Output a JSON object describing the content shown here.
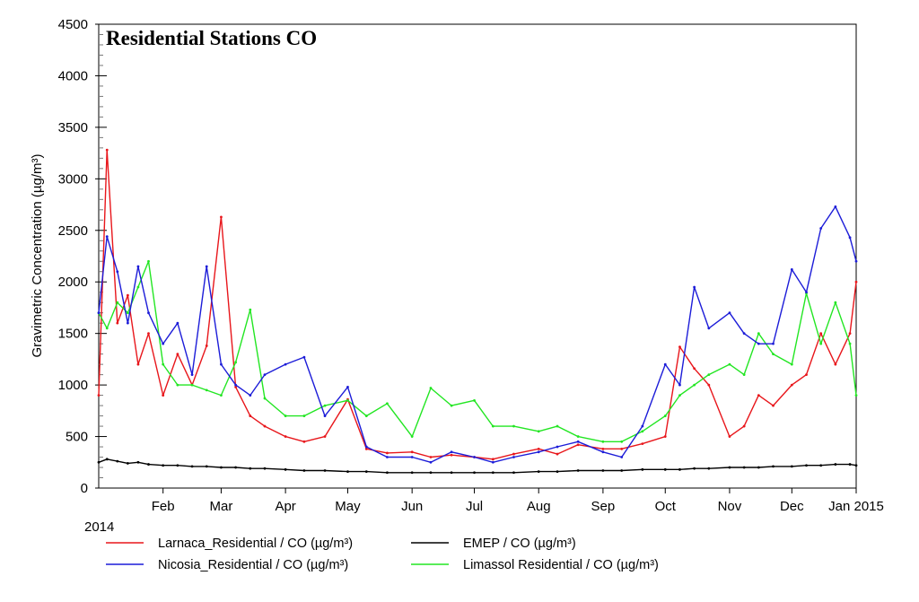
{
  "chart_data": {
    "type": "line",
    "title": "Residential Stations CO",
    "ylabel": "Gravimetric Concentration (µg/m³)",
    "xlabel": "",
    "year_label": "2014",
    "ylim": [
      0,
      4500
    ],
    "yticks": [
      0,
      500,
      1000,
      1500,
      2000,
      2500,
      3000,
      3500,
      4000,
      4500
    ],
    "ytick_labels": [
      "0",
      "500",
      "1000",
      "1500",
      "2000",
      "2500",
      "3000",
      "3500",
      "4000",
      "4500"
    ],
    "x_range": [
      "2014-01-01",
      "2015-01-01"
    ],
    "xticks": [
      "Feb",
      "Mar",
      "Apr",
      "May",
      "Jun",
      "Jul",
      "Aug",
      "Sep",
      "Oct",
      "Nov",
      "Dec",
      "Jan 2015"
    ],
    "xtick_dates": [
      "2014-02-01",
      "2014-03-01",
      "2014-04-01",
      "2014-05-01",
      "2014-06-01",
      "2014-07-01",
      "2014-08-01",
      "2014-09-01",
      "2014-10-01",
      "2014-11-01",
      "2014-12-01",
      "2015-01-01"
    ],
    "grid": false,
    "legend_position": "bottom",
    "x": [
      "2014-01-01",
      "2014-01-05",
      "2014-01-10",
      "2014-01-15",
      "2014-01-20",
      "2014-01-25",
      "2014-02-01",
      "2014-02-08",
      "2014-02-15",
      "2014-02-22",
      "2014-03-01",
      "2014-03-08",
      "2014-03-15",
      "2014-03-22",
      "2014-04-01",
      "2014-04-10",
      "2014-04-20",
      "2014-05-01",
      "2014-05-10",
      "2014-05-20",
      "2014-06-01",
      "2014-06-10",
      "2014-06-20",
      "2014-07-01",
      "2014-07-10",
      "2014-07-20",
      "2014-08-01",
      "2014-08-10",
      "2014-08-20",
      "2014-09-01",
      "2014-09-10",
      "2014-09-20",
      "2014-10-01",
      "2014-10-08",
      "2014-10-15",
      "2014-10-22",
      "2014-11-01",
      "2014-11-08",
      "2014-11-15",
      "2014-11-22",
      "2014-12-01",
      "2014-12-08",
      "2014-12-15",
      "2014-12-22",
      "2014-12-29",
      "2015-01-01"
    ],
    "series": [
      {
        "name": "Larnaca_Residential / CO (µg/m³)",
        "color": "#e8161b",
        "values": [
          900,
          3280,
          1600,
          1870,
          1200,
          1500,
          900,
          1300,
          1000,
          1380,
          2630,
          980,
          700,
          600,
          500,
          450,
          500,
          860,
          380,
          340,
          350,
          300,
          320,
          300,
          280,
          330,
          380,
          330,
          420,
          380,
          380,
          430,
          500,
          1370,
          1160,
          1000,
          500,
          600,
          900,
          800,
          1000,
          1100,
          1500,
          1200,
          1500,
          2000
        ]
      },
      {
        "name": "EMEP / CO (µg/m³)",
        "color": "#000000",
        "values": [
          250,
          280,
          260,
          240,
          250,
          230,
          220,
          220,
          210,
          210,
          200,
          200,
          190,
          190,
          180,
          170,
          170,
          160,
          160,
          150,
          150,
          150,
          150,
          150,
          150,
          150,
          160,
          160,
          170,
          170,
          170,
          180,
          180,
          180,
          190,
          190,
          200,
          200,
          200,
          210,
          210,
          220,
          220,
          230,
          230,
          220
        ]
      },
      {
        "name": "Nicosia_Residential / CO (µg/m³)",
        "color": "#1c1cd8",
        "values": [
          1700,
          2440,
          2100,
          1600,
          2150,
          1700,
          1400,
          1600,
          1100,
          2150,
          1200,
          1000,
          900,
          1100,
          1200,
          1270,
          700,
          980,
          400,
          300,
          300,
          250,
          350,
          300,
          250,
          300,
          350,
          400,
          450,
          350,
          300,
          600,
          1200,
          1000,
          1950,
          1550,
          1700,
          1500,
          1400,
          1400,
          2120,
          1900,
          2520,
          2730,
          2430,
          2200
        ]
      },
      {
        "name": "Limassol Residential / CO (µg/m³)",
        "color": "#22e622",
        "values": [
          1700,
          1550,
          1800,
          1700,
          1950,
          2200,
          1200,
          1000,
          1000,
          950,
          900,
          1220,
          1730,
          870,
          700,
          700,
          800,
          850,
          700,
          820,
          500,
          970,
          800,
          850,
          600,
          600,
          550,
          600,
          500,
          450,
          450,
          550,
          700,
          900,
          1000,
          1100,
          1200,
          1100,
          1500,
          1300,
          1200,
          1890,
          1400,
          1800,
          1400,
          900
        ]
      }
    ]
  }
}
